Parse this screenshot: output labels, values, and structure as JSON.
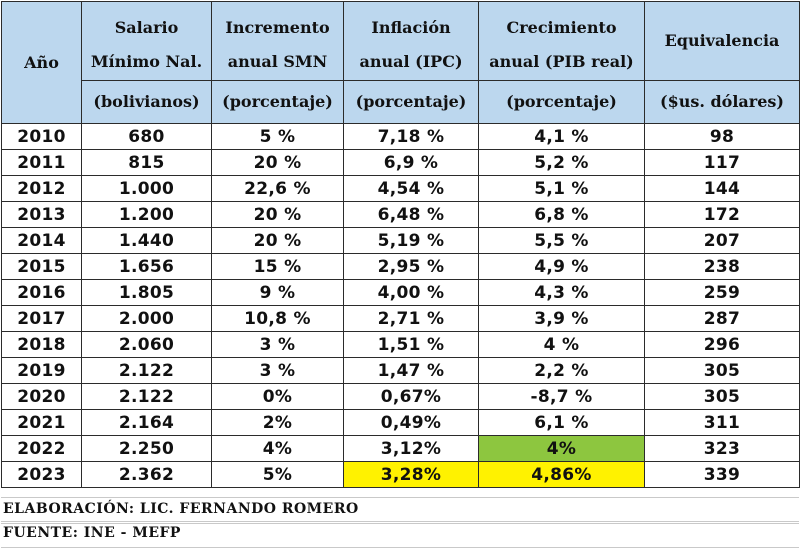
{
  "headers": {
    "year": "Año",
    "salary": {
      "line1": "Salario",
      "line2": "Mínimo Nal.",
      "unit": "(bolivianos)"
    },
    "increment": {
      "line1": "Incremento",
      "line2": "anual SMN",
      "unit": "(porcentaje)"
    },
    "inflation": {
      "line1": "Inflación",
      "line2": "anual  (IPC)",
      "unit": "(porcentaje)"
    },
    "growth": {
      "line1": "Crecimiento",
      "line2": "anual (PIB real)",
      "unit": "(porcentaje)"
    },
    "equiv": {
      "line1": "Equivalencia",
      "unit": "($us. dólares)"
    }
  },
  "rows": [
    {
      "year": "2010",
      "salary": "680",
      "increment": "5 %",
      "inflation": "7,18 %",
      "growth": "4,1 %",
      "equiv": "98"
    },
    {
      "year": "2011",
      "salary": "815",
      "increment": "20 %",
      "inflation": "6,9 %",
      "growth": "5,2 %",
      "equiv": "117"
    },
    {
      "year": "2012",
      "salary": "1.000",
      "increment": "22,6 %",
      "inflation": "4,54 %",
      "growth": "5,1 %",
      "equiv": "144"
    },
    {
      "year": "2013",
      "salary": "1.200",
      "increment": "20 %",
      "inflation": "6,48 %",
      "growth": "6,8 %",
      "equiv": "172"
    },
    {
      "year": "2014",
      "salary": "1.440",
      "increment": "20 %",
      "inflation": "5,19 %",
      "growth": "5,5 %",
      "equiv": "207"
    },
    {
      "year": "2015",
      "salary": "1.656",
      "increment": "15 %",
      "inflation": "2,95 %",
      "growth": "4,9 %",
      "equiv": "238"
    },
    {
      "year": "2016",
      "salary": "1.805",
      "increment": "9 %",
      "inflation": "4,00 %",
      "growth": "4,3 %",
      "equiv": "259"
    },
    {
      "year": "2017",
      "salary": "2.000",
      "increment": "10,8 %",
      "inflation": "2,71 %",
      "growth": "3,9 %",
      "equiv": "287"
    },
    {
      "year": "2018",
      "salary": "2.060",
      "increment": "3 %",
      "inflation": "1,51 %",
      "growth": "4 %",
      "equiv": "296"
    },
    {
      "year": "2019",
      "salary": "2.122",
      "increment": "3 %",
      "inflation": "1,47 %",
      "growth": "2,2 %",
      "equiv": "305"
    },
    {
      "year": "2020",
      "salary": "2.122",
      "increment": "0%",
      "inflation": "0,67%",
      "growth": "-8,7 %",
      "equiv": "305"
    },
    {
      "year": "2021",
      "salary": "2.164",
      "increment": "2%",
      "inflation": "0,49%",
      "growth": "6,1 %",
      "equiv": "311"
    },
    {
      "year": "2022",
      "salary": "2.250",
      "increment": "4%",
      "inflation": "3,12%",
      "growth": "4%",
      "equiv": "323"
    },
    {
      "year": "2023",
      "salary": "2.362",
      "increment": "5%",
      "inflation": "3,28%",
      "growth": "4,86%",
      "equiv": "339"
    }
  ],
  "highlights": {
    "yellow": "#fff200",
    "green": "#8dc63f",
    "header_bg": "#bcd7ee"
  },
  "footer": {
    "credit": "ELABORACIÓN: LIC. FERNANDO ROMERO",
    "source": "FUENTE: INE - MEFP"
  }
}
